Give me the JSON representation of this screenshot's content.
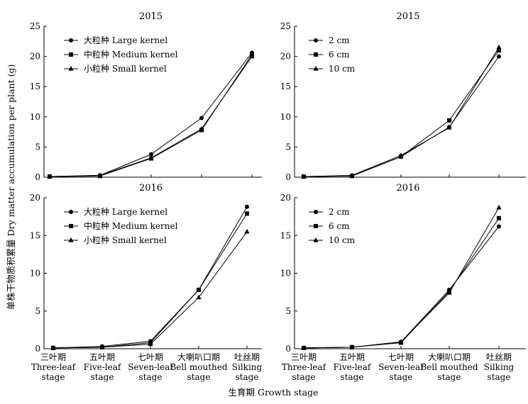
{
  "figure": {
    "ylabel": "单株干物质积累量 Dry matter accumulation per plant (g)",
    "xlabel": "生育期 Growth stage"
  },
  "chart_data": [
    {
      "type": "line",
      "title": "2015",
      "categories": [
        "三叶期 Three-leaf stage",
        "五叶期 Five-leaf stage",
        "七叶期 Seven-leaf stage",
        "大喇叭口期 Bell mouthed stage",
        "吐丝期 Silking stage"
      ],
      "ylim": [
        0,
        25
      ],
      "yticks": [
        0,
        5,
        10,
        15,
        20,
        25
      ],
      "legend_position": "top-left",
      "series": [
        {
          "name": "大粒种 Large kernel",
          "marker": "circle",
          "values": [
            0.1,
            0.3,
            3.8,
            9.8,
            20.6
          ]
        },
        {
          "name": "中粒种 Medium kernel",
          "marker": "square",
          "values": [
            0.1,
            0.2,
            3.1,
            7.8,
            20.3
          ]
        },
        {
          "name": "小粒种 Small kernel",
          "marker": "triangle",
          "values": [
            0.1,
            0.3,
            3.2,
            8.0,
            20.0
          ]
        }
      ]
    },
    {
      "type": "line",
      "title": "2015",
      "categories": [
        "三叶期 Three-leaf stage",
        "五叶期 Five-leaf stage",
        "七叶期 Seven-leaf stage",
        "大喇叭口期 Bell mouthed stage",
        "吐丝期 Silking stage"
      ],
      "ylim": [
        0,
        25
      ],
      "yticks": [
        0,
        5,
        10,
        15,
        20,
        25
      ],
      "legend_position": "top-left",
      "series": [
        {
          "name": "2 cm",
          "marker": "circle",
          "values": [
            0.1,
            0.2,
            3.4,
            8.3,
            20.0
          ]
        },
        {
          "name": "6 cm",
          "marker": "square",
          "values": [
            0.1,
            0.2,
            3.4,
            9.4,
            21.0
          ]
        },
        {
          "name": "10 cm",
          "marker": "triangle",
          "values": [
            0.1,
            0.3,
            3.6,
            8.2,
            21.5
          ]
        }
      ]
    },
    {
      "type": "line",
      "title": "2016",
      "categories": [
        "三叶期 Three-leaf stage",
        "五叶期 Five-leaf stage",
        "七叶期 Seven-leaf stage",
        "大喇叭口期 Bell mouthed stage",
        "吐丝期 Silking stage"
      ],
      "ylim": [
        0,
        20
      ],
      "yticks": [
        0,
        5,
        10,
        15,
        20
      ],
      "legend_position": "top-left",
      "series": [
        {
          "name": "大粒种 Large kernel",
          "marker": "circle",
          "values": [
            0.1,
            0.3,
            1.0,
            7.8,
            18.8
          ]
        },
        {
          "name": "中粒种 Medium kernel",
          "marker": "square",
          "values": [
            0.1,
            0.2,
            0.8,
            7.8,
            17.9
          ]
        },
        {
          "name": "小粒种 Small kernel",
          "marker": "triangle",
          "values": [
            0.1,
            0.2,
            0.6,
            6.8,
            15.5
          ]
        }
      ]
    },
    {
      "type": "line",
      "title": "2016",
      "categories": [
        "三叶期 Three-leaf stage",
        "五叶期 Five-leaf stage",
        "七叶期 Seven-leaf stage",
        "大喇叭口期 Bell mouthed stage",
        "吐丝期 Silking stage"
      ],
      "ylim": [
        0,
        20
      ],
      "yticks": [
        0,
        5,
        10,
        15,
        20
      ],
      "legend_position": "top-left",
      "series": [
        {
          "name": "2 cm",
          "marker": "circle",
          "values": [
            0.1,
            0.2,
            0.9,
            7.8,
            16.2
          ]
        },
        {
          "name": "6 cm",
          "marker": "square",
          "values": [
            0.1,
            0.2,
            0.8,
            7.6,
            17.3
          ]
        },
        {
          "name": "10 cm",
          "marker": "triangle",
          "values": [
            0.1,
            0.2,
            0.9,
            7.4,
            18.7
          ]
        }
      ]
    }
  ]
}
